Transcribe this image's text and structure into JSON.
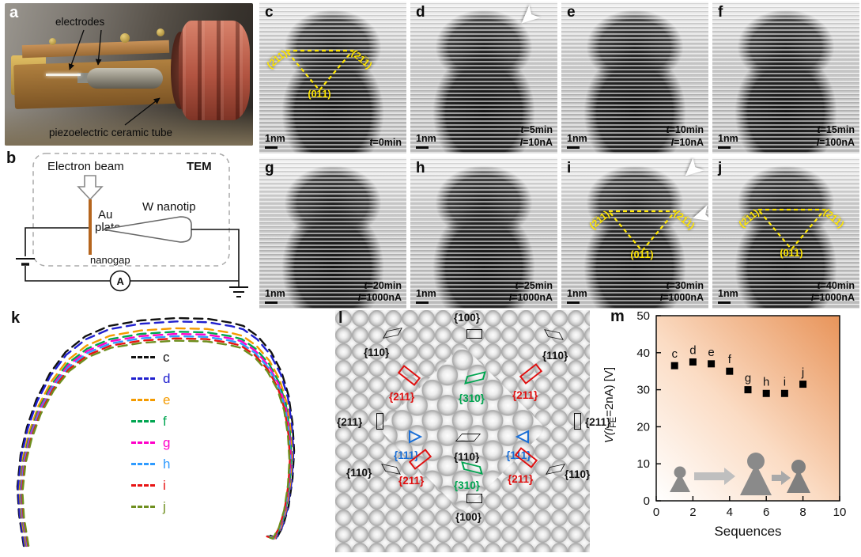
{
  "icons": {
    "block_arrow": "➤"
  },
  "colors": {
    "yellow_annotation": "#ffe600",
    "au_plate": "#b5651d",
    "facet_red": "#e01010",
    "facet_green": "#00a550",
    "facet_blue": "#1b6fd6",
    "plot_bg_orange": "#e8945a"
  },
  "panels": {
    "a": {
      "label": "a",
      "electrodes": "electrodes",
      "piezo": "piezoelectric ceramic tube"
    },
    "b": {
      "label": "b",
      "electron_beam": "Electron beam",
      "tem": "TEM",
      "au": "Au",
      "plate": "plate",
      "w_nanotip": "W nanotip",
      "nanogap": "nanogap",
      "ammeter": "A"
    },
    "tem": {
      "scale_bar": "1nm",
      "facet_labels": {
        "left": "(2̅11)",
        "right": "(21̅1)",
        "bottom": "(01̅1)"
      },
      "panels": [
        {
          "id": "c",
          "time": "t=0min",
          "current": ""
        },
        {
          "id": "d",
          "time": "t=5min",
          "current": "I=10nA"
        },
        {
          "id": "e",
          "time": "t=10min",
          "current": "I=10nA"
        },
        {
          "id": "f",
          "time": "t=15min",
          "current": "I=100nA"
        },
        {
          "id": "g",
          "time": "t=20min",
          "current": "I=1000nA"
        },
        {
          "id": "h",
          "time": "t=25min",
          "current": "I=1000nA"
        },
        {
          "id": "i",
          "time": "t=30min",
          "current": "I=1000nA"
        },
        {
          "id": "j",
          "time": "t=40min",
          "current": "I=1000nA"
        }
      ]
    },
    "k": {
      "label": "k"
    },
    "l": {
      "label": "l",
      "facets": [
        {
          "label": "{100}",
          "color": "#111111",
          "position": "top",
          "marker": "rectangle"
        },
        {
          "label": "{110}",
          "color": "#111111",
          "position": "top-left",
          "marker": "parallelogram"
        },
        {
          "label": "{110}",
          "color": "#111111",
          "position": "top-right",
          "marker": "parallelogram"
        },
        {
          "label": "{211}",
          "color": "#111111",
          "position": "left",
          "marker": "rectangle"
        },
        {
          "label": "{211}",
          "color": "#111111",
          "position": "right",
          "marker": "rectangle"
        },
        {
          "label": "{211}",
          "color": "#e01010",
          "position": "upper-left",
          "marker": "rectangle"
        },
        {
          "label": "{211}",
          "color": "#e01010",
          "position": "upper-right",
          "marker": "rectangle"
        },
        {
          "label": "{310}",
          "color": "#00a550",
          "position": "upper-center",
          "marker": "parallelogram"
        },
        {
          "label": "{111}",
          "color": "#1b6fd6",
          "position": "mid-left",
          "marker": "triangle"
        },
        {
          "label": "{111}",
          "color": "#1b6fd6",
          "position": "mid-right",
          "marker": "triangle"
        },
        {
          "label": "{110}",
          "color": "#111111",
          "position": "center",
          "marker": "parallelogram"
        },
        {
          "label": "{211}",
          "color": "#e01010",
          "position": "lower-left",
          "marker": "rectangle"
        },
        {
          "label": "{211}",
          "color": "#e01010",
          "position": "lower-right",
          "marker": "rectangle"
        },
        {
          "label": "{310}",
          "color": "#00a550",
          "position": "lower-center",
          "marker": "parallelogram"
        },
        {
          "label": "{110}",
          "color": "#111111",
          "position": "bottom-left",
          "marker": "parallelogram"
        },
        {
          "label": "{110}",
          "color": "#111111",
          "position": "bottom-right",
          "marker": "parallelogram"
        },
        {
          "label": "{100}",
          "color": "#111111",
          "position": "bottom",
          "marker": "rectangle"
        }
      ]
    },
    "m": {
      "label": "m",
      "xlabel": "Sequences",
      "ylabel": {
        "v": "V(",
        "i": "I",
        "sub": "FE",
        "rest": "=2nA) [V]"
      }
    }
  },
  "chart_data": [
    {
      "type": "line",
      "description": "Overlaid nanotip apex profiles traced from TEM panels c–j",
      "linestyle": "dashed",
      "axes": "none",
      "legend_position": "center-left",
      "series": [
        {
          "name": "c",
          "color": "#111111",
          "shrink": 1.0
        },
        {
          "name": "d",
          "color": "#2020cf",
          "shrink": 0.985
        },
        {
          "name": "e",
          "color": "#f49b00",
          "shrink": 0.955
        },
        {
          "name": "f",
          "color": "#00a550",
          "shrink": 0.94
        },
        {
          "name": "g",
          "color": "#ff00c8",
          "shrink": 0.93
        },
        {
          "name": "h",
          "color": "#2f9bff",
          "shrink": 0.92
        },
        {
          "name": "i",
          "color": "#e81313",
          "shrink": 0.91
        },
        {
          "name": "j",
          "color": "#6f8f1f",
          "shrink": 0.9
        }
      ],
      "base_profile": [
        [
          22,
          300
        ],
        [
          16,
          260
        ],
        [
          14,
          225
        ],
        [
          18,
          185
        ],
        [
          26,
          150
        ],
        [
          38,
          115
        ],
        [
          55,
          82
        ],
        [
          75,
          55
        ],
        [
          100,
          35
        ],
        [
          130,
          22
        ],
        [
          170,
          15
        ],
        [
          215,
          12
        ],
        [
          255,
          13
        ],
        [
          285,
          18
        ],
        [
          300,
          22
        ],
        [
          318,
          35
        ],
        [
          335,
          55
        ],
        [
          348,
          80
        ],
        [
          357,
          110
        ],
        [
          362,
          145
        ],
        [
          364,
          180
        ],
        [
          362,
          215
        ],
        [
          357,
          250
        ],
        [
          350,
          275
        ],
        [
          342,
          290
        ],
        [
          334,
          287
        ]
      ]
    },
    {
      "type": "scatter",
      "x": [
        1,
        2,
        3,
        4,
        5,
        6,
        7,
        8
      ],
      "y": [
        36.5,
        37.5,
        37,
        35,
        30,
        29,
        29,
        31.5
      ],
      "point_labels": [
        "c",
        "d",
        "e",
        "f",
        "g",
        "h",
        "i",
        "j"
      ],
      "xlabel": "Sequences",
      "ylabel": "V(I_FE=2nA) [V]",
      "xlim": [
        0,
        10
      ],
      "ylim": [
        0,
        50
      ],
      "x_ticks": [
        0,
        2,
        4,
        6,
        8,
        10
      ],
      "y_ticks": [
        0,
        10,
        20,
        30,
        40,
        50
      ],
      "marker": "square",
      "marker_color": "#000000",
      "background": "orange gradient, darker toward top-right"
    }
  ]
}
